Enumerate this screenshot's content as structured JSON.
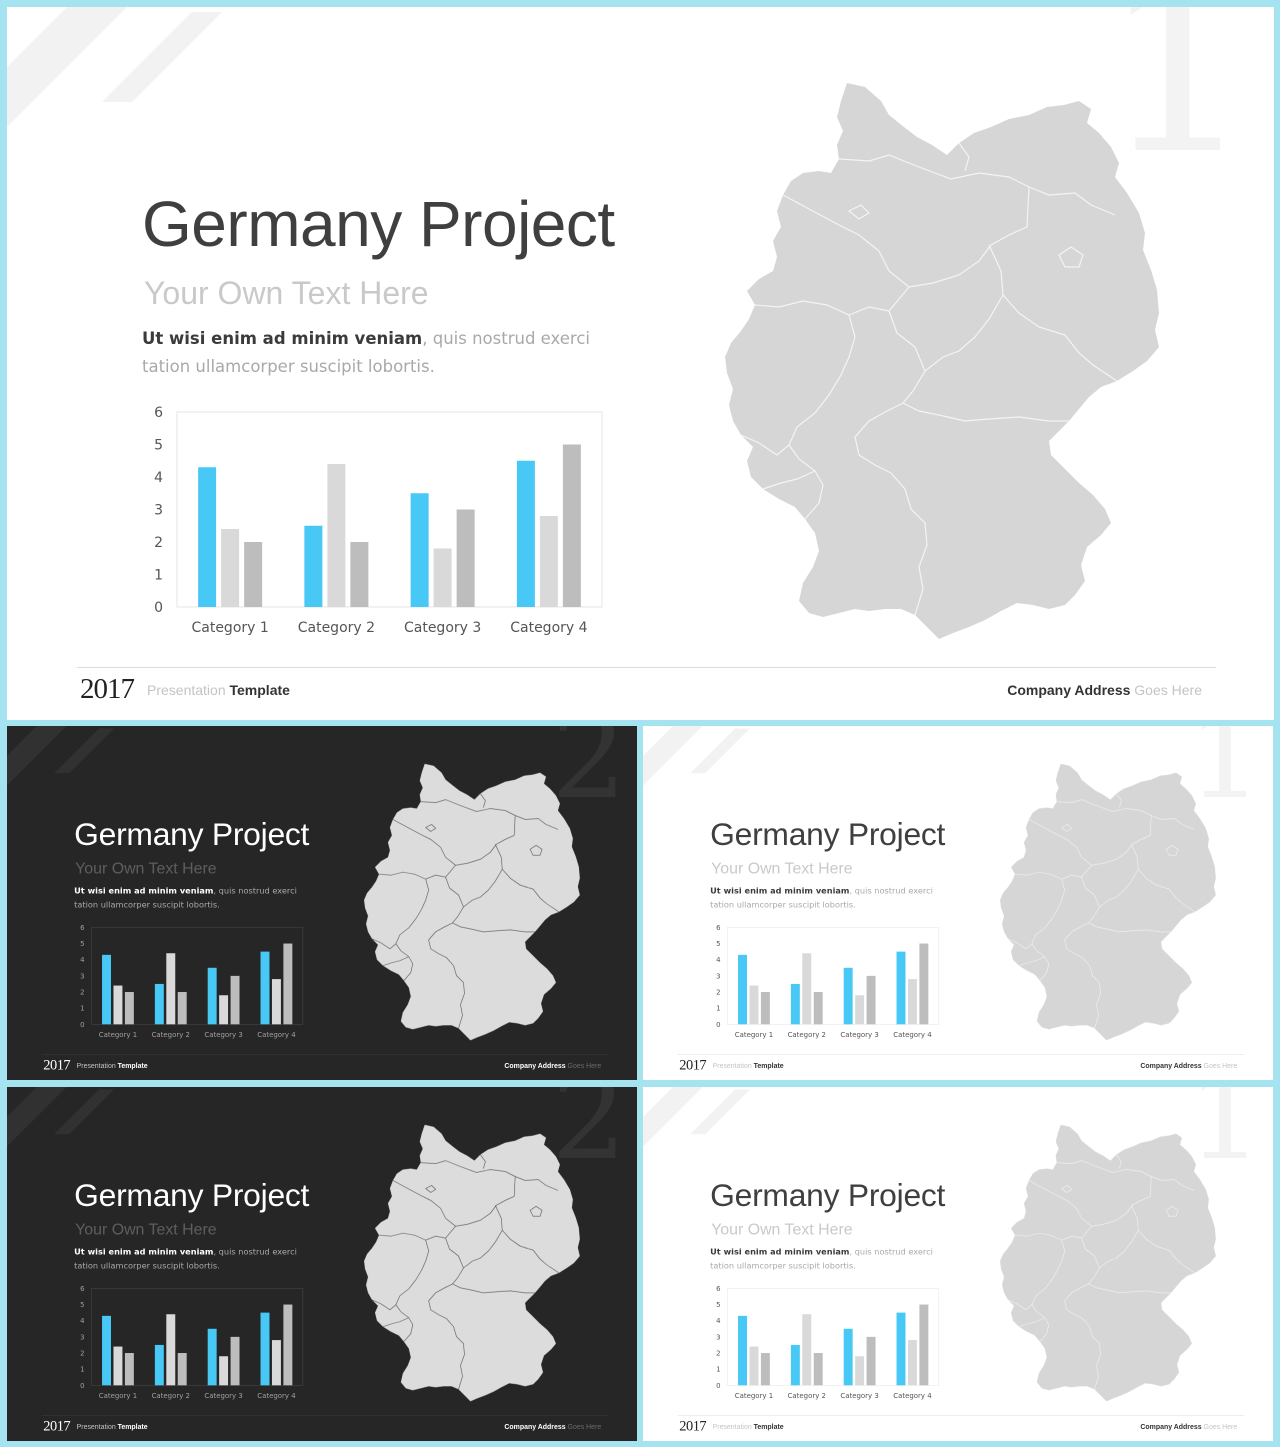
{
  "slide": {
    "title": "Germany Project",
    "subtitle": "Your Own Text Here",
    "desc_bold": "Ut wisi enim ad minim veniam",
    "desc_rest": ", quis nostrud exerci tation ullamcorper suscipit lobortis.",
    "footer": {
      "year": "2017",
      "presentation": "Presentation",
      "template": " Template",
      "company_address": "Company Address",
      "goes_here": " Goes Here"
    }
  },
  "slides": [
    {
      "theme": "light",
      "number": "1"
    },
    {
      "theme": "dark",
      "number": "2"
    },
    {
      "theme": "light",
      "number": "1"
    },
    {
      "theme": "dark",
      "number": "2"
    },
    {
      "theme": "light",
      "number": "1"
    }
  ],
  "colors": {
    "series1": "#47c8f5",
    "series2": "#d9d9d9",
    "series3": "#bdbdbd",
    "map_fill": "#d6d6d6",
    "map_fill_dark": "#dcdcdc",
    "frame": "#a6e3f0"
  },
  "chart_data": {
    "type": "bar",
    "categories": [
      "Category 1",
      "Category 2",
      "Category 3",
      "Category 4"
    ],
    "series": [
      {
        "values": [
          4.3,
          2.5,
          3.5,
          4.5
        ]
      },
      {
        "values": [
          2.4,
          4.4,
          1.8,
          2.8
        ]
      },
      {
        "values": [
          2.0,
          2.0,
          3.0,
          5.0
        ]
      }
    ],
    "ylim": [
      0,
      6
    ],
    "yticks": [
      "0",
      "1",
      "2",
      "3",
      "4",
      "5",
      "6"
    ],
    "title": "",
    "xlabel": "",
    "ylabel": "",
    "grid": false,
    "legend": "none"
  }
}
